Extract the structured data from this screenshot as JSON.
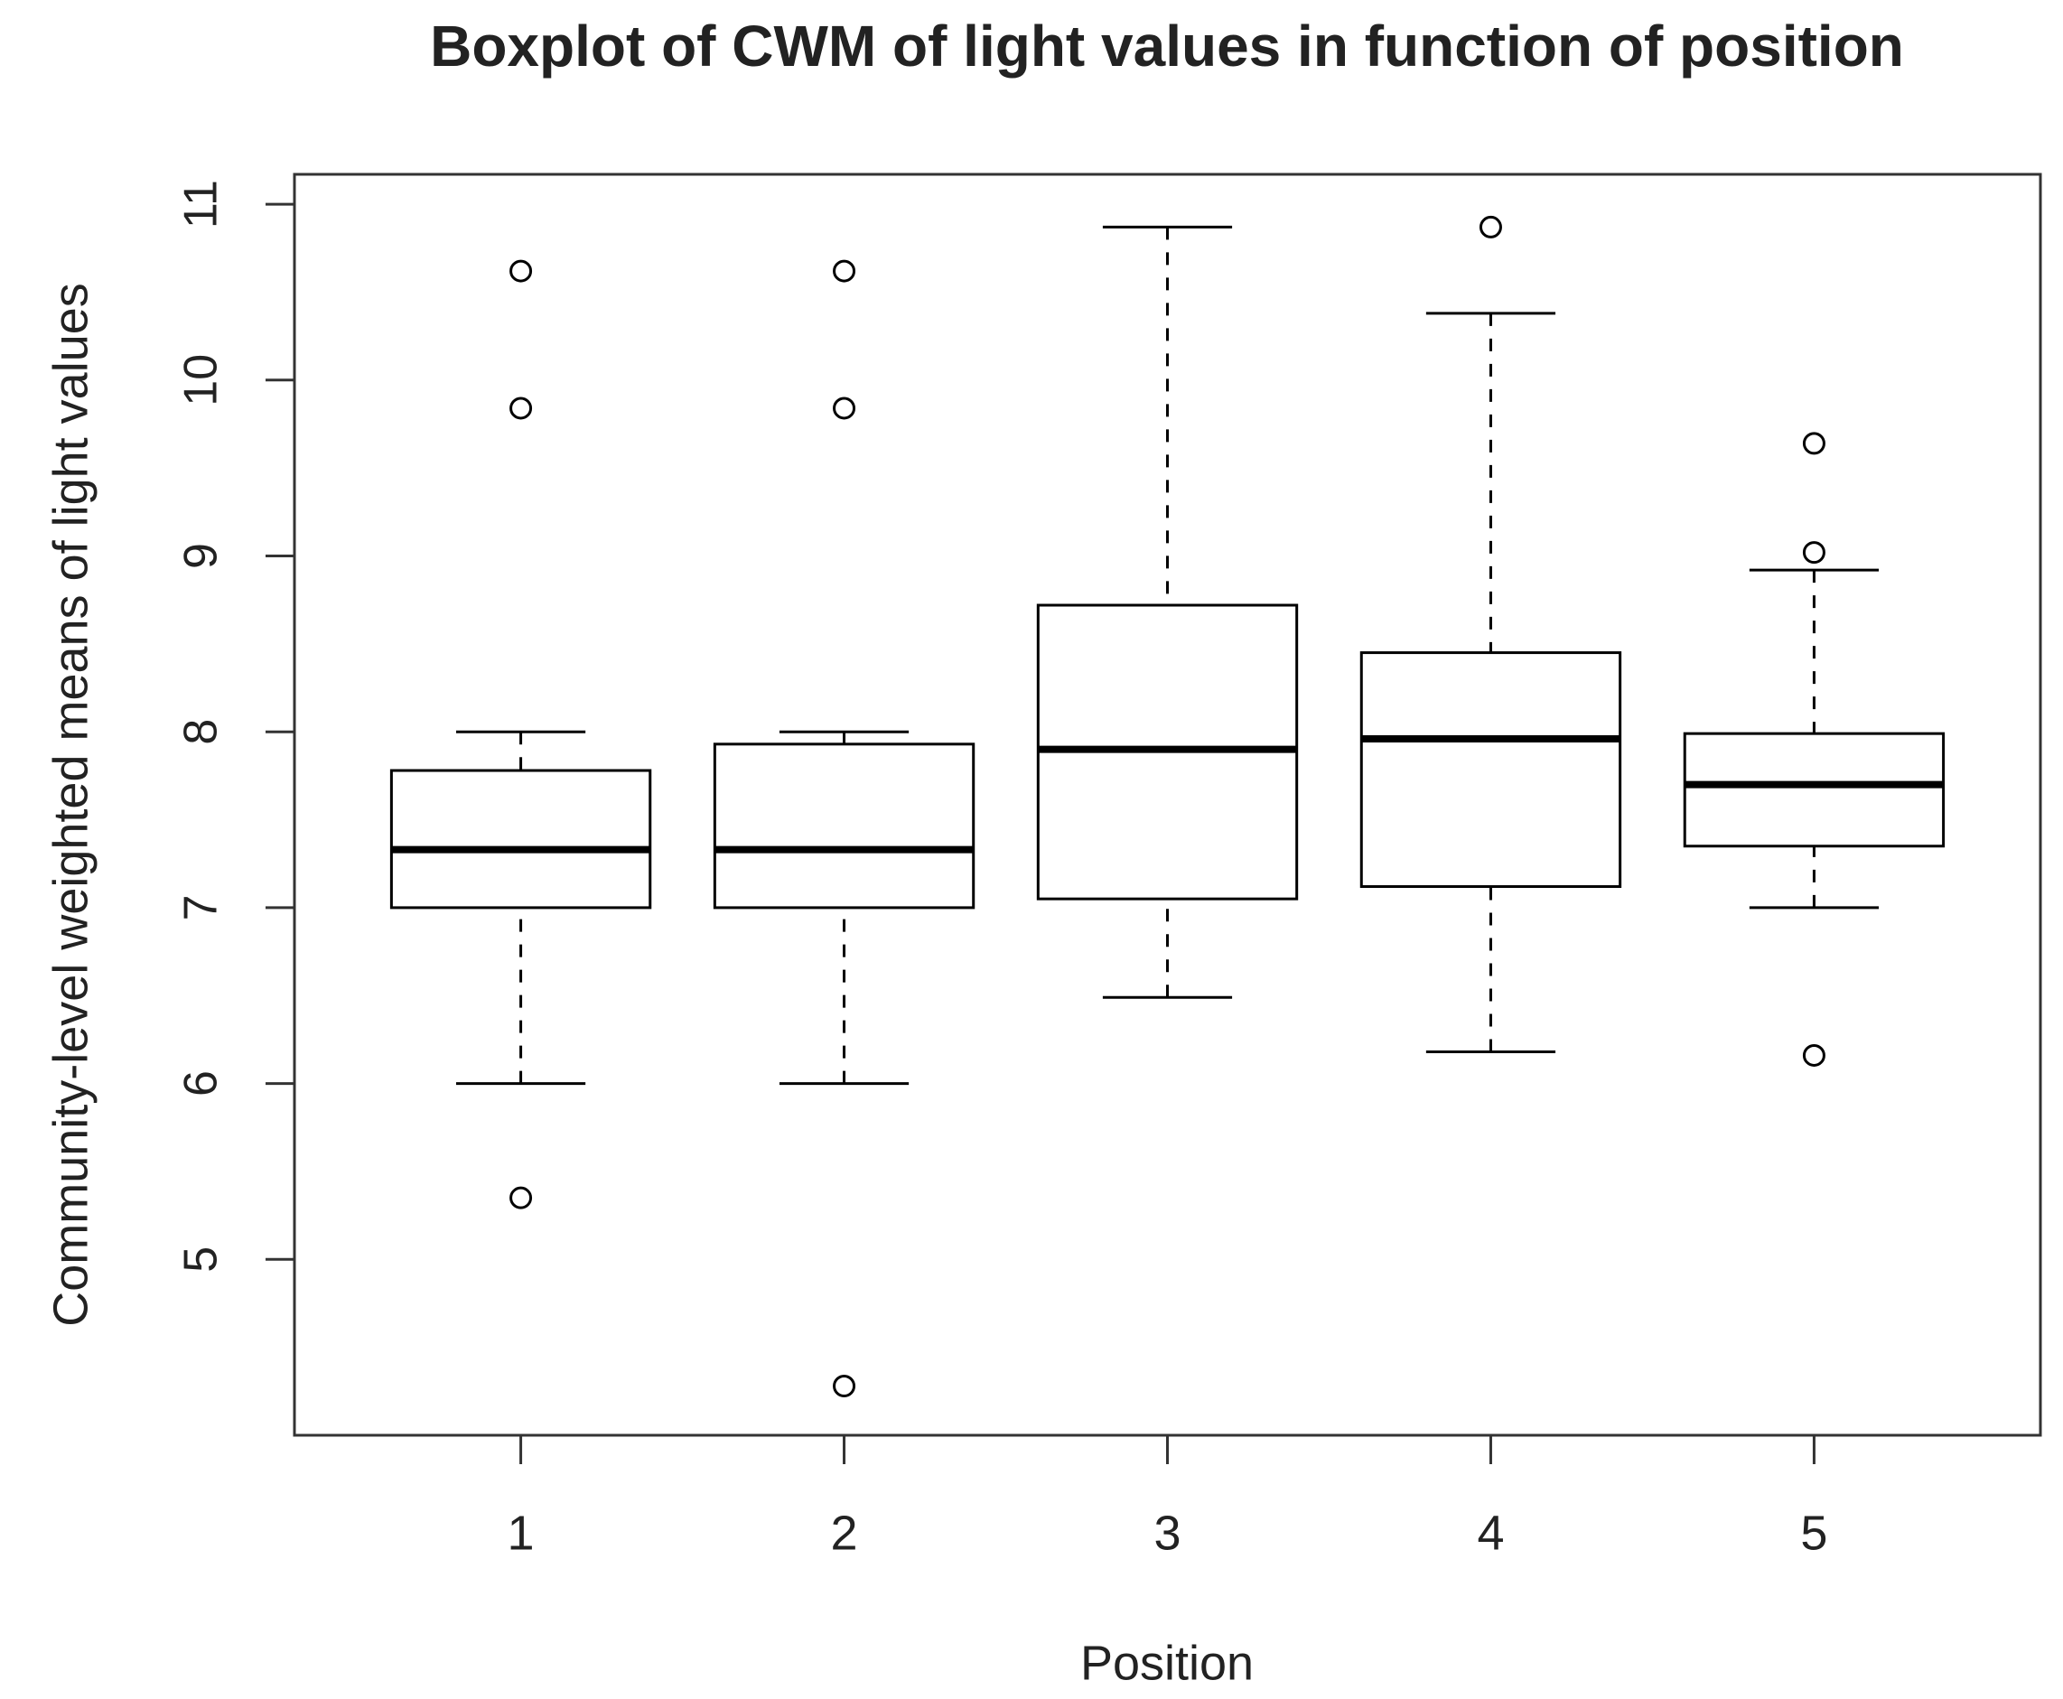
{
  "chart_data": {
    "type": "boxplot",
    "title": "Boxplot of CWM of light values in function of position",
    "x_label": "Position",
    "y_label": "Community-level weighted means of light values",
    "categories": [
      "1",
      "2",
      "3",
      "4",
      "5"
    ],
    "boxes": [
      {
        "whislo": 6.0,
        "q1": 7.0,
        "median": 7.33,
        "q3": 7.78,
        "whishi": 8.0,
        "outliers": [
          10.62,
          9.84,
          5.35
        ]
      },
      {
        "whislo": 6.0,
        "q1": 7.0,
        "median": 7.33,
        "q3": 7.93,
        "whishi": 8.0,
        "outliers": [
          10.62,
          9.84,
          4.28
        ]
      },
      {
        "whislo": 6.49,
        "q1": 7.05,
        "median": 7.9,
        "q3": 8.72,
        "whishi": 10.87,
        "outliers": []
      },
      {
        "whislo": 6.18,
        "q1": 7.12,
        "median": 7.96,
        "q3": 8.45,
        "whishi": 10.38,
        "outliers": [
          10.87
        ]
      },
      {
        "whislo": 7.0,
        "q1": 7.35,
        "median": 7.7,
        "q3": 7.99,
        "whishi": 8.92,
        "outliers": [
          9.64,
          9.02,
          6.16
        ]
      }
    ],
    "color": "#000000",
    "ylim": [
      4.0,
      11.17
    ],
    "yticks": [
      5,
      6,
      7,
      8,
      9,
      10,
      11
    ]
  }
}
